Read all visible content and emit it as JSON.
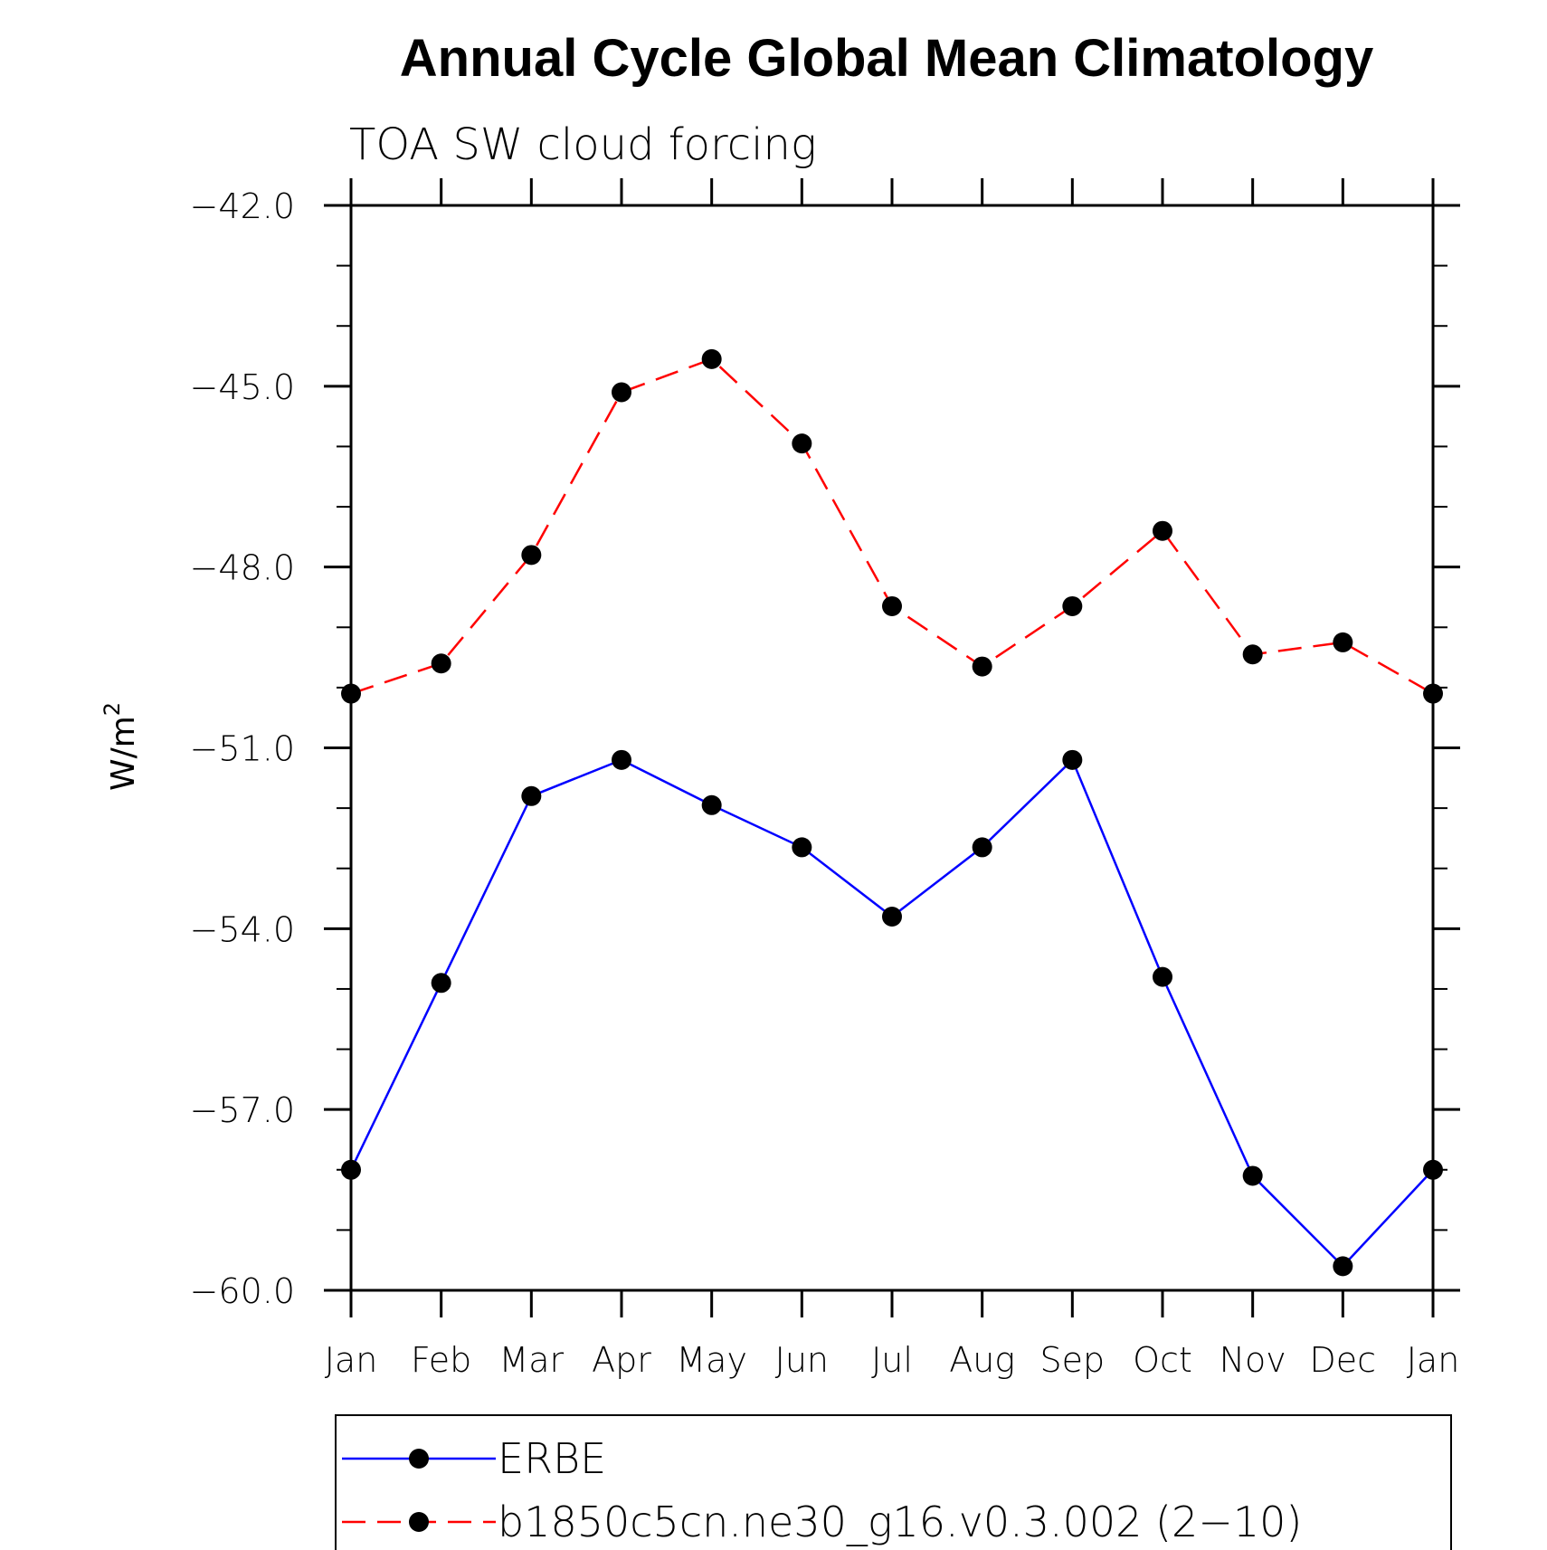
{
  "chart_data": {
    "type": "line",
    "title": "Annual Cycle Global Mean Climatology",
    "subtitle": "TOA SW cloud forcing",
    "ylabel": "W/m",
    "ylabel_superscript": "2",
    "xlabel": "",
    "categories": [
      "Jan",
      "Feb",
      "Mar",
      "Apr",
      "May",
      "Jun",
      "Jul",
      "Aug",
      "Sep",
      "Oct",
      "Nov",
      "Dec",
      "Jan"
    ],
    "ylim": [
      -60.0,
      -42.0
    ],
    "yticks": [
      -42.0,
      -45.0,
      -48.0,
      -51.0,
      -54.0,
      -57.0,
      -60.0
    ],
    "ytick_labels": [
      "−42.0",
      "−45.0",
      "−48.0",
      "−51.0",
      "−54.0",
      "−57.0",
      "−60.0"
    ],
    "grid": false,
    "legend_position": "bottom",
    "series": [
      {
        "name": "ERBE",
        "color": "#0000ff",
        "dash": "solid",
        "values": [
          -58.0,
          -54.9,
          -51.8,
          -51.2,
          -51.95,
          -52.65,
          -53.8,
          -52.65,
          -51.2,
          -54.8,
          -58.1,
          -59.6,
          -58.0
        ]
      },
      {
        "name": "b1850c5cn.ne30_g16.v0.3.002 (2−10)",
        "color": "#ff0000",
        "dash": "dashed",
        "values": [
          -50.1,
          -49.6,
          -47.8,
          -45.1,
          -44.55,
          -45.95,
          -48.65,
          -49.65,
          -48.65,
          -47.4,
          -49.45,
          -49.25,
          -50.1
        ]
      }
    ]
  }
}
